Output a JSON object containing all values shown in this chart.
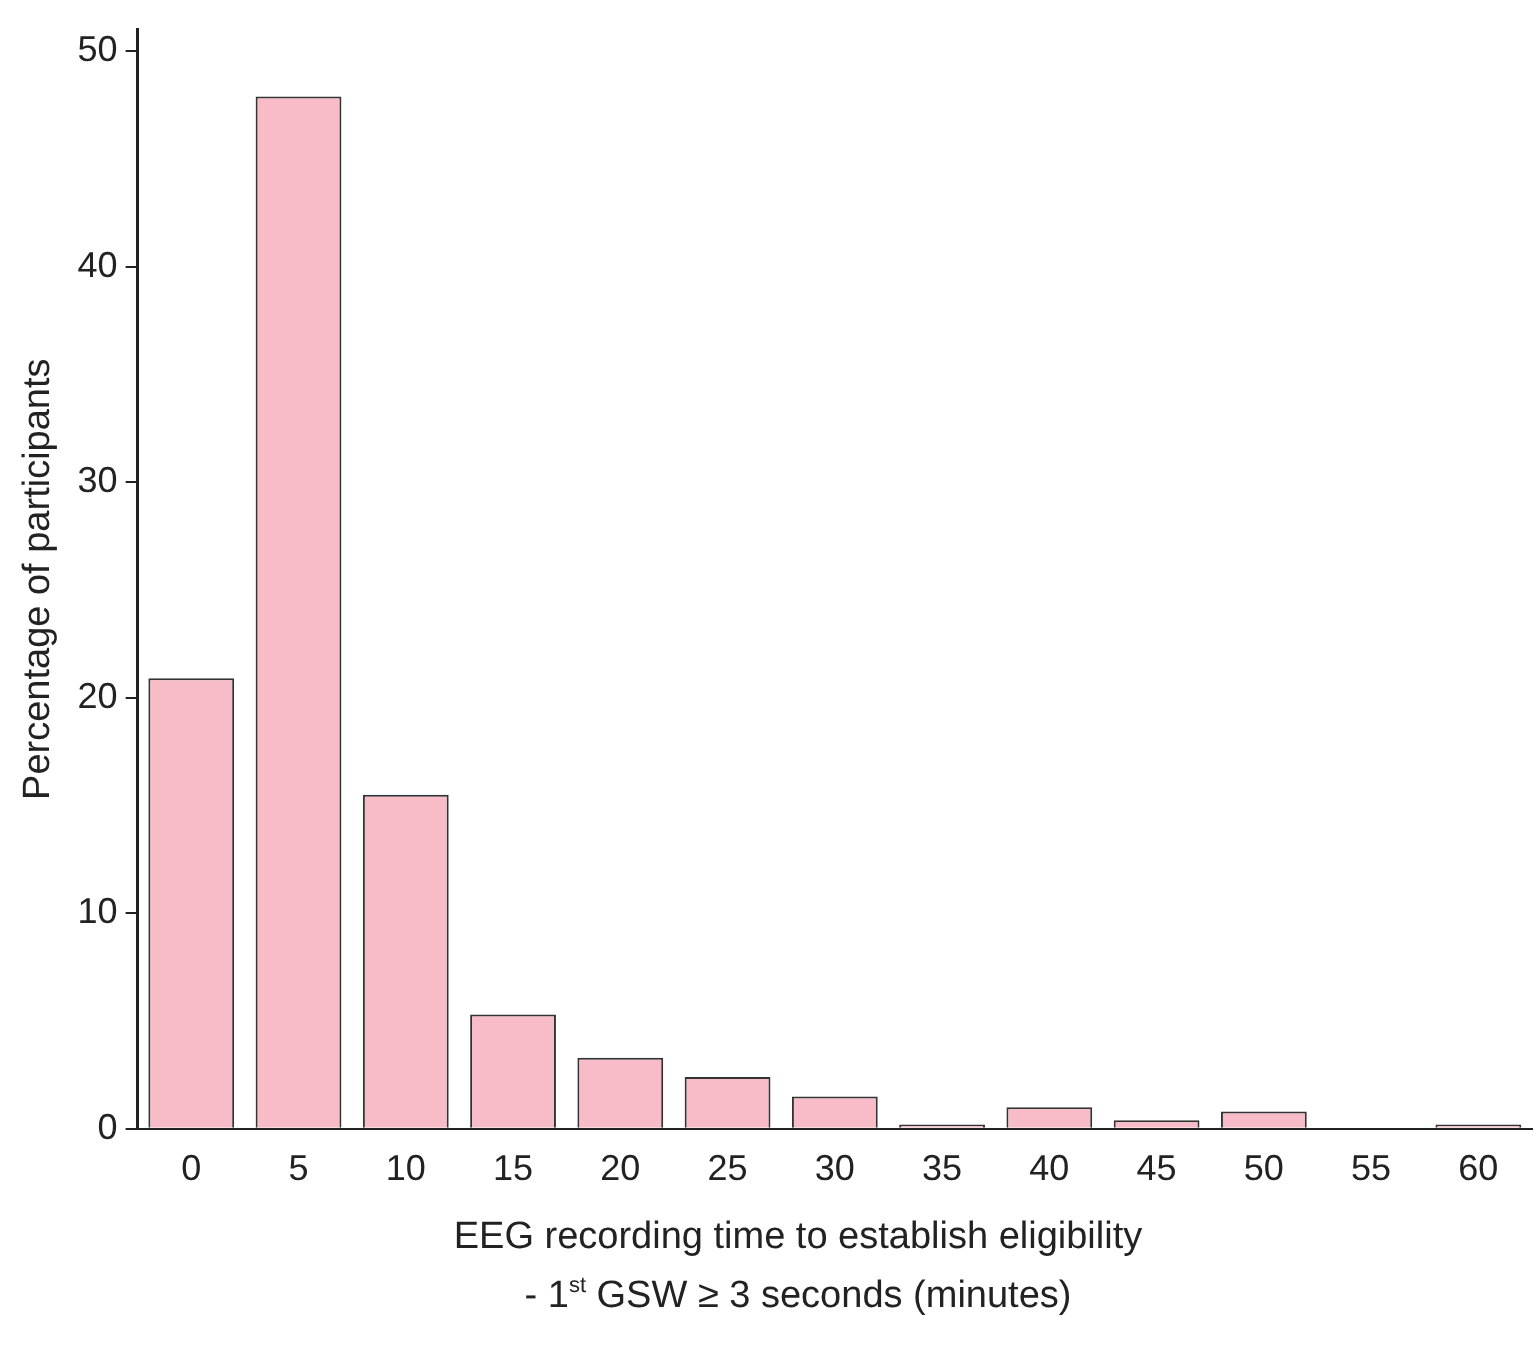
{
  "chart_data": {
    "type": "bar",
    "xlabel": "EEG recording time to establish eligibility\n- 1$^{st}$ GSW ≥ 3 seconds (minutes)",
    "ylabel": "Percentage of participants",
    "categories": [
      "0",
      "5",
      "10",
      "15",
      "20",
      "25",
      "30",
      "35",
      "40",
      "45",
      "50",
      "55",
      "60"
    ],
    "values": [
      20.9,
      47.9,
      15.5,
      5.3,
      3.3,
      2.4,
      1.5,
      0.2,
      1.0,
      0.4,
      0.8,
      0,
      0.2
    ],
    "color": "#f7bcc8",
    "ylim": [
      0,
      51
    ],
    "yticks": [
      0,
      10,
      20,
      30,
      40,
      50
    ],
    "grid": false,
    "legend": false
  }
}
